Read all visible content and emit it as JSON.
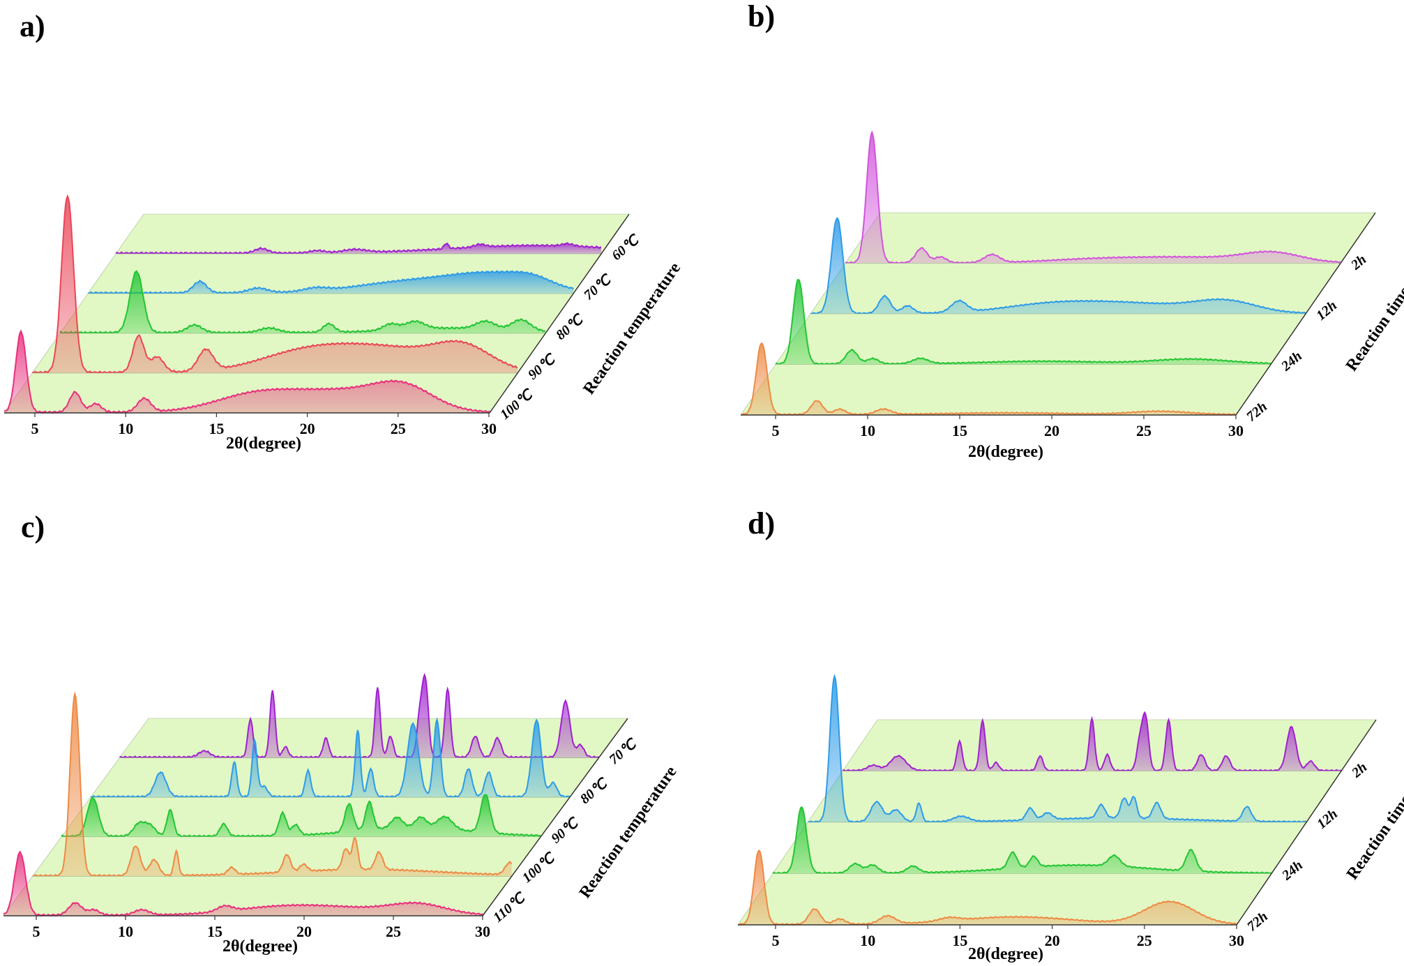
{
  "colors": {
    "plane": "#e2f8c4",
    "purple": "#a021d0",
    "blue": "#2d9be8",
    "green": "#22c534",
    "red": "#ea4658",
    "pink": "#e8307c",
    "orange": "#ee8a45"
  },
  "chart_data": [
    {
      "panel_label": "a)",
      "type": "area",
      "xlabel": "2θ(degree)",
      "zlabel": "Reaction temperature",
      "xlim": [
        4,
        30
      ],
      "xticks": [
        "5",
        "10",
        "15",
        "20",
        "25",
        "30"
      ],
      "series": [
        {
          "name": "60℃",
          "color": "#a021d0",
          "baseline": 0.02,
          "peaks": [
            [
              11.8,
              0.12,
              0.35
            ],
            [
              14.8,
              0.06,
              0.4
            ],
            [
              16.8,
              0.08,
              0.6
            ],
            [
              21.7,
              0.14,
              0.12
            ],
            [
              23.5,
              0.07,
              0.3
            ],
            [
              26.5,
              0.2,
              4.5
            ],
            [
              28.2,
              0.06,
              0.3
            ]
          ]
        },
        {
          "name": "70℃",
          "color": "#2d9be8",
          "baseline": 0.02,
          "peaks": [
            [
              10.0,
              0.3,
              0.35
            ],
            [
              13.1,
              0.12,
              0.5
            ],
            [
              16.2,
              0.08,
              0.6
            ],
            [
              21.5,
              0.3,
              3.0
            ],
            [
              26.0,
              0.42,
              2.3
            ],
            [
              27.8,
              0.15,
              1.0
            ]
          ]
        },
        {
          "name": "80℃",
          "color": "#22c534",
          "baseline": 0.02,
          "peaks": [
            [
              8.1,
              1.6,
              0.35
            ],
            [
              11.2,
              0.2,
              0.4
            ],
            [
              15.2,
              0.12,
              0.5
            ],
            [
              18.4,
              0.22,
              0.3
            ],
            [
              21.7,
              0.16,
              0.4
            ],
            [
              23.0,
              0.2,
              0.5
            ],
            [
              26.8,
              0.2,
              0.5
            ],
            [
              28.7,
              0.28,
              0.5
            ],
            [
              25.0,
              0.12,
              3.0
            ]
          ]
        },
        {
          "name": "90℃",
          "color": "#ea4658",
          "baseline": 0.02,
          "peaks": [
            [
              5.9,
              4.6,
              0.32
            ],
            [
              9.7,
              0.95,
              0.3
            ],
            [
              10.7,
              0.4,
              0.35
            ],
            [
              13.3,
              0.55,
              0.4
            ],
            [
              18.5,
              0.45,
              2.5
            ],
            [
              23.0,
              0.6,
              3.0
            ],
            [
              27.1,
              0.55,
              1.5
            ]
          ]
        },
        {
          "name": "100℃",
          "color": "#e8307c",
          "baseline": 0.02,
          "peaks": [
            [
              4.9,
              2.1,
              0.28
            ],
            [
              7.8,
              0.52,
              0.3
            ],
            [
              8.9,
              0.22,
              0.3
            ],
            [
              11.5,
              0.35,
              0.35
            ],
            [
              17.5,
              0.45,
              2.2
            ],
            [
              22.0,
              0.5,
              2.5
            ],
            [
              25.4,
              0.58,
              1.6
            ]
          ]
        }
      ]
    },
    {
      "panel_label": "b)",
      "type": "area",
      "xlabel": "2θ(degree)",
      "zlabel": "Reaction time",
      "xlim": [
        4,
        30
      ],
      "xticks": [
        "5",
        "10",
        "15",
        "20",
        "25",
        "30"
      ],
      "series": [
        {
          "name": "2h",
          "color": "#d254dc",
          "baseline": 0.02,
          "peaks": [
            [
              5.4,
              4.9,
              0.28
            ],
            [
              8.0,
              0.55,
              0.3
            ],
            [
              9.0,
              0.22,
              0.3
            ],
            [
              11.7,
              0.3,
              0.4
            ],
            [
              17.0,
              0.12,
              2.5
            ],
            [
              22.0,
              0.2,
              3.0
            ],
            [
              26.4,
              0.35,
              1.5
            ]
          ]
        },
        {
          "name": "12h",
          "color": "#2d9be8",
          "baseline": 0.02,
          "peaks": [
            [
              5.4,
              3.6,
              0.3
            ],
            [
              7.9,
              0.65,
              0.3
            ],
            [
              9.1,
              0.28,
              0.3
            ],
            [
              11.8,
              0.42,
              0.4
            ],
            [
              16.5,
              0.3,
              2.5
            ],
            [
              21.0,
              0.35,
              3.0
            ],
            [
              25.8,
              0.42,
              1.6
            ]
          ]
        },
        {
          "name": "24h",
          "color": "#22c534",
          "baseline": 0.02,
          "peaks": [
            [
              5.2,
              3.2,
              0.28
            ],
            [
              8.0,
              0.52,
              0.3
            ],
            [
              9.1,
              0.2,
              0.3
            ],
            [
              11.6,
              0.2,
              0.4
            ],
            [
              18.0,
              0.1,
              3.0
            ],
            [
              25.8,
              0.18,
              2.0
            ]
          ]
        },
        {
          "name": "72h",
          "color": "#ee8a45",
          "baseline": 0.02,
          "peaks": [
            [
              5.1,
              2.7,
              0.28
            ],
            [
              8.0,
              0.52,
              0.3
            ],
            [
              9.2,
              0.2,
              0.3
            ],
            [
              11.5,
              0.2,
              0.4
            ],
            [
              18.0,
              0.06,
              3.0
            ],
            [
              26.0,
              0.12,
              1.5
            ]
          ]
        }
      ]
    },
    {
      "panel_label": "c)",
      "type": "area",
      "xlabel": "2θ(degree)",
      "zlabel": "Reaction temperature",
      "xlim": [
        4,
        30
      ],
      "xticks": [
        "5",
        "10",
        "15",
        "20",
        "25",
        "30"
      ],
      "series": [
        {
          "name": "70℃",
          "color": "#a021d0",
          "baseline": 0.02,
          "peaks": [
            [
              8.6,
              0.18,
              0.3
            ],
            [
              11.1,
              1.1,
              0.14
            ],
            [
              12.3,
              1.9,
              0.14
            ],
            [
              13.0,
              0.3,
              0.15
            ],
            [
              15.2,
              0.55,
              0.15
            ],
            [
              18.0,
              2.0,
              0.14
            ],
            [
              18.7,
              0.6,
              0.15
            ],
            [
              20.3,
              1.2,
              0.16
            ],
            [
              20.6,
              2.1,
              0.16
            ],
            [
              21.8,
              1.95,
              0.15
            ],
            [
              23.3,
              0.6,
              0.2
            ],
            [
              24.5,
              0.55,
              0.2
            ],
            [
              28.2,
              1.6,
              0.24
            ],
            [
              29.0,
              0.35,
              0.2
            ]
          ]
        },
        {
          "name": "80℃",
          "color": "#2d9be8",
          "baseline": 0.02,
          "peaks": [
            [
              7.8,
              0.7,
              0.3
            ],
            [
              11.8,
              1.0,
              0.14
            ],
            [
              12.9,
              1.6,
              0.14
            ],
            [
              13.4,
              0.3,
              0.2
            ],
            [
              15.8,
              0.75,
              0.15
            ],
            [
              18.5,
              1.9,
              0.14
            ],
            [
              19.2,
              0.8,
              0.16
            ],
            [
              21.5,
              2.1,
              0.3
            ],
            [
              22.8,
              2.2,
              0.18
            ],
            [
              24.5,
              0.8,
              0.2
            ],
            [
              25.6,
              0.7,
              0.2
            ],
            [
              28.2,
              2.2,
              0.25
            ],
            [
              29.1,
              0.4,
              0.2
            ]
          ]
        },
        {
          "name": "90℃",
          "color": "#22c534",
          "baseline": 0.02,
          "peaks": [
            [
              5.7,
              1.1,
              0.3
            ],
            [
              8.2,
              0.35,
              0.3
            ],
            [
              8.8,
              0.3,
              0.3
            ],
            [
              9.9,
              0.75,
              0.18
            ],
            [
              12.8,
              0.35,
              0.2
            ],
            [
              16.0,
              0.65,
              0.2
            ],
            [
              16.7,
              0.3,
              0.2
            ],
            [
              19.6,
              0.8,
              0.22
            ],
            [
              20.7,
              0.8,
              0.2
            ],
            [
              22.2,
              0.3,
              0.3
            ],
            [
              23.5,
              0.3,
              0.3
            ],
            [
              24.8,
              0.35,
              0.4
            ],
            [
              27.0,
              1.1,
              0.25
            ],
            [
              23.0,
              0.25,
              3.0
            ]
          ]
        },
        {
          "name": "100℃",
          "color": "#ee8a45",
          "baseline": 0.02,
          "peaks": [
            [
              6.3,
              5.2,
              0.26
            ],
            [
              9.6,
              0.85,
              0.25
            ],
            [
              10.6,
              0.45,
              0.25
            ],
            [
              11.8,
              0.7,
              0.12
            ],
            [
              14.8,
              0.2,
              0.2
            ],
            [
              17.8,
              0.5,
              0.2
            ],
            [
              18.7,
              0.2,
              0.2
            ],
            [
              21.0,
              0.6,
              0.18
            ],
            [
              21.5,
              0.9,
              0.15
            ],
            [
              22.8,
              0.5,
              0.2
            ],
            [
              29.9,
              0.35,
              0.25
            ],
            [
              22.0,
              0.18,
              4.0
            ]
          ]
        },
        {
          "name": "110℃",
          "color": "#e8307c",
          "baseline": 0.02,
          "peaks": [
            [
              4.9,
              1.8,
              0.3
            ],
            [
              7.9,
              0.35,
              0.35
            ],
            [
              8.9,
              0.15,
              0.3
            ],
            [
              11.5,
              0.15,
              0.4
            ],
            [
              16.0,
              0.15,
              0.4
            ],
            [
              18.5,
              0.15,
              2.5
            ],
            [
              22.0,
              0.2,
              3.0
            ],
            [
              26.5,
              0.28,
              1.5
            ]
          ]
        }
      ]
    },
    {
      "panel_label": "d)",
      "type": "area",
      "xlabel": "2θ(degree)",
      "zlabel": "Reaction time",
      "xlim": [
        4,
        30
      ],
      "xticks": [
        "5",
        "10",
        "15",
        "20",
        "25",
        "30"
      ],
      "series": [
        {
          "name": "2h",
          "color": "#a021d0",
          "baseline": 0.02,
          "peaks": [
            [
              5.6,
              0.2,
              0.3
            ],
            [
              6.9,
              0.55,
              0.4
            ],
            [
              10.1,
              1.1,
              0.14
            ],
            [
              11.3,
              1.9,
              0.14
            ],
            [
              12.0,
              0.3,
              0.15
            ],
            [
              14.3,
              0.55,
              0.15
            ],
            [
              17.0,
              1.95,
              0.14
            ],
            [
              17.8,
              0.6,
              0.15
            ],
            [
              19.5,
              1.1,
              0.16
            ],
            [
              19.8,
              1.95,
              0.16
            ],
            [
              21.0,
              1.9,
              0.15
            ],
            [
              22.7,
              0.6,
              0.2
            ],
            [
              24.0,
              0.55,
              0.2
            ],
            [
              27.4,
              1.65,
              0.24
            ],
            [
              28.4,
              0.35,
              0.2
            ]
          ]
        },
        {
          "name": "12h",
          "color": "#2d9be8",
          "baseline": 0.02,
          "peaks": [
            [
              5.4,
              5.5,
              0.24
            ],
            [
              7.6,
              0.75,
              0.3
            ],
            [
              8.6,
              0.45,
              0.3
            ],
            [
              9.8,
              0.7,
              0.14
            ],
            [
              12.0,
              0.2,
              0.4
            ],
            [
              15.6,
              0.45,
              0.2
            ],
            [
              16.5,
              0.25,
              0.25
            ],
            [
              19.3,
              0.5,
              0.2
            ],
            [
              20.5,
              0.75,
              0.18
            ],
            [
              21.0,
              0.8,
              0.15
            ],
            [
              22.2,
              0.6,
              0.2
            ],
            [
              26.9,
              0.55,
              0.22
            ],
            [
              20.0,
              0.15,
              3.5
            ]
          ]
        },
        {
          "name": "24h",
          "color": "#22c534",
          "baseline": 0.02,
          "peaks": [
            [
              5.5,
              2.5,
              0.26
            ],
            [
              8.3,
              0.35,
              0.3
            ],
            [
              9.2,
              0.3,
              0.3
            ],
            [
              11.3,
              0.25,
              0.3
            ],
            [
              16.5,
              0.6,
              0.22
            ],
            [
              17.6,
              0.4,
              0.2
            ],
            [
              21.8,
              0.4,
              0.3
            ],
            [
              25.8,
              0.8,
              0.25
            ],
            [
              20.0,
              0.3,
              3.5
            ]
          ]
        },
        {
          "name": "72h",
          "color": "#ee8a45",
          "baseline": 0.02,
          "peaks": [
            [
              5.1,
              2.8,
              0.26
            ],
            [
              8.0,
              0.58,
              0.3
            ],
            [
              9.3,
              0.2,
              0.3
            ],
            [
              11.8,
              0.3,
              0.4
            ],
            [
              15.0,
              0.12,
              0.5
            ],
            [
              18.5,
              0.28,
              3.0
            ],
            [
              26.5,
              0.85,
              1.3
            ]
          ]
        }
      ]
    }
  ]
}
